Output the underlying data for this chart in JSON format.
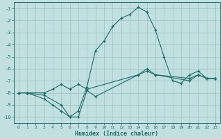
{
  "bg_color": "#c2e0e0",
  "grid_color": "#8dbdbd",
  "line_color": "#1e6b6b",
  "xlabel": "Humidex (Indice chaleur)",
  "xlim_min": -0.5,
  "xlim_max": 23.5,
  "ylim_min": -10.5,
  "ylim_max": -0.5,
  "yticks": [
    -10,
    -9,
    -8,
    -7,
    -6,
    -5,
    -4,
    -3,
    -2,
    -1
  ],
  "xticks": [
    0,
    1,
    2,
    3,
    4,
    5,
    6,
    7,
    8,
    9,
    10,
    11,
    12,
    13,
    14,
    15,
    16,
    17,
    18,
    19,
    20,
    21,
    22,
    23
  ],
  "line1_x": [
    0,
    1,
    3,
    4,
    5,
    6,
    7,
    8,
    14,
    15,
    16,
    20,
    21,
    22,
    23
  ],
  "line1_y": [
    -8.0,
    -8.0,
    -8.0,
    -7.7,
    -7.3,
    -7.7,
    -7.3,
    -7.7,
    -6.5,
    -6.2,
    -6.5,
    -6.8,
    -6.5,
    -6.8,
    -6.8
  ],
  "line2_x": [
    0,
    1,
    3,
    5,
    6,
    7,
    8,
    9,
    14,
    15,
    16,
    20,
    21,
    22,
    23
  ],
  "line2_y": [
    -8.0,
    -8.0,
    -8.2,
    -9.0,
    -10.0,
    -10.0,
    -7.8,
    -8.3,
    -6.5,
    -6.0,
    -6.5,
    -7.0,
    -6.5,
    -6.8,
    -6.8
  ],
  "line3_x": [
    0,
    1,
    3,
    4,
    5,
    6,
    7,
    8,
    9,
    10,
    11,
    12,
    13,
    14,
    15,
    16,
    17,
    18,
    19,
    20,
    21,
    22,
    23
  ],
  "line3_y": [
    -8.0,
    -8.0,
    -8.5,
    -9.0,
    -9.5,
    -10.0,
    -9.5,
    -7.5,
    -4.5,
    -3.7,
    -2.5,
    -1.8,
    -1.5,
    -0.9,
    -1.3,
    -2.8,
    -5.0,
    -7.0,
    -7.2,
    -6.5,
    -6.2,
    -6.8,
    -6.8
  ],
  "figw": 3.2,
  "figh": 2.0,
  "dpi": 100
}
